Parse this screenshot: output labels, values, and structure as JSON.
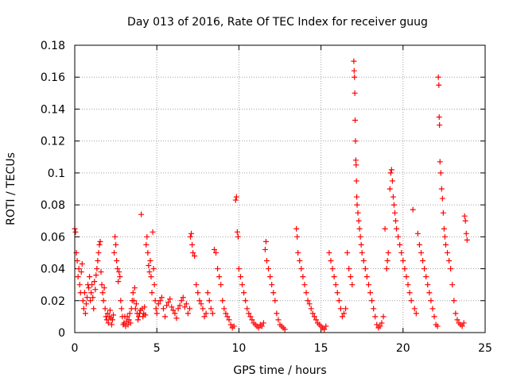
{
  "chart_data": {
    "type": "scatter",
    "title": "Day 013 of 2016, Rate Of TEC Index for receiver guug",
    "xlabel": "GPS time / hours",
    "ylabel": "ROTI / TECUs",
    "xlim": [
      0,
      25
    ],
    "ylim": [
      0,
      0.18
    ],
    "x_ticks": [
      0,
      5,
      10,
      15,
      20,
      25
    ],
    "x_tick_labels": [
      "0",
      "5",
      "10",
      "15",
      "20",
      "25"
    ],
    "y_ticks": [
      0,
      0.02,
      0.04,
      0.06,
      0.08,
      0.1,
      0.12,
      0.14,
      0.16,
      0.18
    ],
    "y_tick_labels": [
      "0",
      "0.02",
      "0.04",
      "0.06",
      "0.08",
      "0.1",
      "0.12",
      "0.14",
      "0.16",
      "0.18"
    ],
    "grid": true,
    "marker": "+",
    "marker_color": "#ff0000",
    "series": [
      {
        "name": "ROTI",
        "points": [
          [
            0.0,
            0.065
          ],
          [
            0.05,
            0.063
          ],
          [
            0.1,
            0.05
          ],
          [
            0.15,
            0.045
          ],
          [
            0.2,
            0.035
          ],
          [
            0.25,
            0.04
          ],
          [
            0.3,
            0.03
          ],
          [
            0.35,
            0.025
          ],
          [
            0.4,
            0.038
          ],
          [
            0.45,
            0.043
          ],
          [
            0.5,
            0.02
          ],
          [
            0.55,
            0.015
          ],
          [
            0.6,
            0.025
          ],
          [
            0.65,
            0.012
          ],
          [
            0.7,
            0.018
          ],
          [
            0.75,
            0.022
          ],
          [
            0.8,
            0.03
          ],
          [
            0.85,
            0.028
          ],
          [
            0.9,
            0.035
          ],
          [
            0.95,
            0.02
          ],
          [
            1.0,
            0.025
          ],
          [
            1.05,
            0.03
          ],
          [
            1.1,
            0.022
          ],
          [
            1.15,
            0.015
          ],
          [
            1.2,
            0.032
          ],
          [
            1.25,
            0.027
          ],
          [
            1.3,
            0.036
          ],
          [
            1.35,
            0.04
          ],
          [
            1.4,
            0.045
          ],
          [
            1.45,
            0.05
          ],
          [
            1.5,
            0.055
          ],
          [
            1.55,
            0.057
          ],
          [
            1.6,
            0.038
          ],
          [
            1.65,
            0.03
          ],
          [
            1.7,
            0.025
          ],
          [
            1.75,
            0.02
          ],
          [
            1.8,
            0.028
          ],
          [
            1.85,
            0.015
          ],
          [
            1.9,
            0.01
          ],
          [
            1.95,
            0.008
          ],
          [
            2.0,
            0.012
          ],
          [
            2.05,
            0.006
          ],
          [
            2.1,
            0.01
          ],
          [
            2.15,
            0.014
          ],
          [
            2.2,
            0.009
          ],
          [
            2.25,
            0.005
          ],
          [
            2.3,
            0.008
          ],
          [
            2.35,
            0.011
          ],
          [
            2.4,
            0.05
          ],
          [
            2.45,
            0.06
          ],
          [
            2.5,
            0.055
          ],
          [
            2.55,
            0.045
          ],
          [
            2.6,
            0.04
          ],
          [
            2.65,
            0.032
          ],
          [
            2.7,
            0.038
          ],
          [
            2.75,
            0.035
          ],
          [
            2.8,
            0.02
          ],
          [
            2.85,
            0.015
          ],
          [
            2.9,
            0.01
          ],
          [
            2.95,
            0.005
          ],
          [
            3.0,
            0.006
          ],
          [
            3.05,
            0.01
          ],
          [
            3.1,
            0.004
          ],
          [
            3.15,
            0.007
          ],
          [
            3.2,
            0.01
          ],
          [
            3.25,
            0.005
          ],
          [
            3.3,
            0.008
          ],
          [
            3.35,
            0.012
          ],
          [
            3.4,
            0.006
          ],
          [
            3.45,
            0.015
          ],
          [
            3.5,
            0.02
          ],
          [
            3.55,
            0.025
          ],
          [
            3.6,
            0.02
          ],
          [
            3.65,
            0.028
          ],
          [
            3.7,
            0.015
          ],
          [
            3.75,
            0.018
          ],
          [
            3.8,
            0.012
          ],
          [
            3.85,
            0.008
          ],
          [
            3.9,
            0.01
          ],
          [
            3.95,
            0.012
          ],
          [
            4.0,
            0.014
          ],
          [
            4.05,
            0.074
          ],
          [
            4.1,
            0.015
          ],
          [
            4.15,
            0.01
          ],
          [
            4.2,
            0.012
          ],
          [
            4.25,
            0.016
          ],
          [
            4.3,
            0.011
          ],
          [
            4.35,
            0.055
          ],
          [
            4.4,
            0.06
          ],
          [
            4.45,
            0.05
          ],
          [
            4.5,
            0.042
          ],
          [
            4.55,
            0.038
          ],
          [
            4.6,
            0.045
          ],
          [
            4.65,
            0.035
          ],
          [
            4.7,
            0.025
          ],
          [
            4.75,
            0.063
          ],
          [
            4.8,
            0.04
          ],
          [
            4.85,
            0.03
          ],
          [
            4.9,
            0.02
          ],
          [
            4.95,
            0.015
          ],
          [
            5.0,
            0.012
          ],
          [
            5.1,
            0.018
          ],
          [
            5.2,
            0.02
          ],
          [
            5.3,
            0.022
          ],
          [
            5.4,
            0.015
          ],
          [
            5.5,
            0.01
          ],
          [
            5.6,
            0.017
          ],
          [
            5.7,
            0.019
          ],
          [
            5.8,
            0.021
          ],
          [
            5.9,
            0.016
          ],
          [
            6.0,
            0.014
          ],
          [
            6.1,
            0.012
          ],
          [
            6.2,
            0.009
          ],
          [
            6.3,
            0.015
          ],
          [
            6.4,
            0.017
          ],
          [
            6.5,
            0.02
          ],
          [
            6.6,
            0.022
          ],
          [
            6.7,
            0.016
          ],
          [
            6.8,
            0.018
          ],
          [
            6.9,
            0.012
          ],
          [
            7.0,
            0.015
          ],
          [
            7.05,
            0.06
          ],
          [
            7.1,
            0.062
          ],
          [
            7.15,
            0.055
          ],
          [
            7.2,
            0.05
          ],
          [
            7.3,
            0.048
          ],
          [
            7.4,
            0.03
          ],
          [
            7.5,
            0.025
          ],
          [
            7.6,
            0.02
          ],
          [
            7.7,
            0.018
          ],
          [
            7.8,
            0.015
          ],
          [
            7.9,
            0.01
          ],
          [
            8.0,
            0.012
          ],
          [
            8.1,
            0.025
          ],
          [
            8.2,
            0.02
          ],
          [
            8.3,
            0.015
          ],
          [
            8.4,
            0.012
          ],
          [
            8.5,
            0.052
          ],
          [
            8.6,
            0.05
          ],
          [
            8.7,
            0.04
          ],
          [
            8.8,
            0.035
          ],
          [
            8.9,
            0.03
          ],
          [
            9.0,
            0.02
          ],
          [
            9.1,
            0.015
          ],
          [
            9.2,
            0.012
          ],
          [
            9.3,
            0.01
          ],
          [
            9.4,
            0.008
          ],
          [
            9.5,
            0.005
          ],
          [
            9.6,
            0.003
          ],
          [
            9.7,
            0.004
          ],
          [
            9.8,
            0.083
          ],
          [
            9.85,
            0.085
          ],
          [
            9.9,
            0.063
          ],
          [
            9.95,
            0.06
          ],
          [
            10.0,
            0.04
          ],
          [
            10.1,
            0.035
          ],
          [
            10.2,
            0.03
          ],
          [
            10.3,
            0.025
          ],
          [
            10.4,
            0.02
          ],
          [
            10.5,
            0.015
          ],
          [
            10.6,
            0.012
          ],
          [
            10.7,
            0.01
          ],
          [
            10.8,
            0.008
          ],
          [
            10.9,
            0.006
          ],
          [
            11.0,
            0.005
          ],
          [
            11.1,
            0.004
          ],
          [
            11.2,
            0.003
          ],
          [
            11.3,
            0.005
          ],
          [
            11.4,
            0.004
          ],
          [
            11.5,
            0.006
          ],
          [
            11.6,
            0.052
          ],
          [
            11.65,
            0.057
          ],
          [
            11.7,
            0.045
          ],
          [
            11.8,
            0.04
          ],
          [
            11.9,
            0.035
          ],
          [
            12.0,
            0.03
          ],
          [
            12.1,
            0.025
          ],
          [
            12.2,
            0.02
          ],
          [
            12.3,
            0.012
          ],
          [
            12.4,
            0.008
          ],
          [
            12.5,
            0.005
          ],
          [
            12.6,
            0.004
          ],
          [
            12.7,
            0.003
          ],
          [
            12.8,
            0.002
          ],
          [
            13.5,
            0.065
          ],
          [
            13.55,
            0.06
          ],
          [
            13.6,
            0.05
          ],
          [
            13.7,
            0.045
          ],
          [
            13.8,
            0.04
          ],
          [
            13.9,
            0.035
          ],
          [
            14.0,
            0.03
          ],
          [
            14.1,
            0.025
          ],
          [
            14.2,
            0.02
          ],
          [
            14.3,
            0.018
          ],
          [
            14.4,
            0.015
          ],
          [
            14.5,
            0.012
          ],
          [
            14.6,
            0.01
          ],
          [
            14.7,
            0.008
          ],
          [
            14.8,
            0.006
          ],
          [
            14.9,
            0.005
          ],
          [
            15.0,
            0.004
          ],
          [
            15.1,
            0.003
          ],
          [
            15.2,
            0.002
          ],
          [
            15.3,
            0.004
          ],
          [
            15.5,
            0.05
          ],
          [
            15.6,
            0.045
          ],
          [
            15.7,
            0.04
          ],
          [
            15.8,
            0.035
          ],
          [
            15.9,
            0.03
          ],
          [
            16.0,
            0.025
          ],
          [
            16.1,
            0.02
          ],
          [
            16.2,
            0.015
          ],
          [
            16.3,
            0.01
          ],
          [
            16.4,
            0.012
          ],
          [
            16.5,
            0.015
          ],
          [
            16.6,
            0.05
          ],
          [
            16.7,
            0.04
          ],
          [
            16.8,
            0.035
          ],
          [
            16.9,
            0.03
          ],
          [
            17.0,
            0.17
          ],
          [
            17.02,
            0.164
          ],
          [
            17.04,
            0.16
          ],
          [
            17.06,
            0.15
          ],
          [
            17.08,
            0.133
          ],
          [
            17.1,
            0.12
          ],
          [
            17.12,
            0.108
          ],
          [
            17.14,
            0.105
          ],
          [
            17.16,
            0.095
          ],
          [
            17.18,
            0.085
          ],
          [
            17.2,
            0.08
          ],
          [
            17.25,
            0.075
          ],
          [
            17.3,
            0.07
          ],
          [
            17.35,
            0.065
          ],
          [
            17.4,
            0.06
          ],
          [
            17.45,
            0.055
          ],
          [
            17.5,
            0.05
          ],
          [
            17.6,
            0.045
          ],
          [
            17.7,
            0.04
          ],
          [
            17.8,
            0.035
          ],
          [
            17.9,
            0.03
          ],
          [
            18.0,
            0.025
          ],
          [
            18.1,
            0.02
          ],
          [
            18.2,
            0.015
          ],
          [
            18.3,
            0.01
          ],
          [
            18.4,
            0.005
          ],
          [
            18.5,
            0.003
          ],
          [
            18.6,
            0.004
          ],
          [
            18.7,
            0.006
          ],
          [
            18.8,
            0.01
          ],
          [
            18.9,
            0.065
          ],
          [
            19.0,
            0.04
          ],
          [
            19.05,
            0.045
          ],
          [
            19.1,
            0.05
          ],
          [
            19.2,
            0.09
          ],
          [
            19.25,
            0.1
          ],
          [
            19.3,
            0.102
          ],
          [
            19.35,
            0.095
          ],
          [
            19.4,
            0.085
          ],
          [
            19.45,
            0.08
          ],
          [
            19.5,
            0.075
          ],
          [
            19.55,
            0.07
          ],
          [
            19.6,
            0.065
          ],
          [
            19.7,
            0.06
          ],
          [
            19.8,
            0.055
          ],
          [
            19.9,
            0.05
          ],
          [
            20.0,
            0.045
          ],
          [
            20.1,
            0.04
          ],
          [
            20.2,
            0.035
          ],
          [
            20.3,
            0.03
          ],
          [
            20.4,
            0.025
          ],
          [
            20.5,
            0.02
          ],
          [
            20.6,
            0.077
          ],
          [
            20.7,
            0.015
          ],
          [
            20.8,
            0.012
          ],
          [
            20.9,
            0.062
          ],
          [
            21.0,
            0.055
          ],
          [
            21.1,
            0.05
          ],
          [
            21.2,
            0.045
          ],
          [
            21.3,
            0.04
          ],
          [
            21.4,
            0.035
          ],
          [
            21.5,
            0.03
          ],
          [
            21.6,
            0.025
          ],
          [
            21.7,
            0.02
          ],
          [
            21.8,
            0.015
          ],
          [
            21.9,
            0.01
          ],
          [
            22.0,
            0.005
          ],
          [
            22.1,
            0.004
          ],
          [
            22.15,
            0.16
          ],
          [
            22.18,
            0.155
          ],
          [
            22.2,
            0.135
          ],
          [
            22.22,
            0.13
          ],
          [
            22.25,
            0.107
          ],
          [
            22.3,
            0.1
          ],
          [
            22.35,
            0.09
          ],
          [
            22.4,
            0.084
          ],
          [
            22.45,
            0.075
          ],
          [
            22.5,
            0.065
          ],
          [
            22.55,
            0.06
          ],
          [
            22.6,
            0.055
          ],
          [
            22.7,
            0.05
          ],
          [
            22.8,
            0.045
          ],
          [
            22.9,
            0.04
          ],
          [
            23.0,
            0.03
          ],
          [
            23.1,
            0.02
          ],
          [
            23.2,
            0.012
          ],
          [
            23.3,
            0.008
          ],
          [
            23.4,
            0.006
          ],
          [
            23.5,
            0.005
          ],
          [
            23.6,
            0.004
          ],
          [
            23.7,
            0.006
          ],
          [
            23.75,
            0.073
          ],
          [
            23.8,
            0.07
          ],
          [
            23.85,
            0.062
          ],
          [
            23.9,
            0.058
          ]
        ]
      }
    ]
  }
}
